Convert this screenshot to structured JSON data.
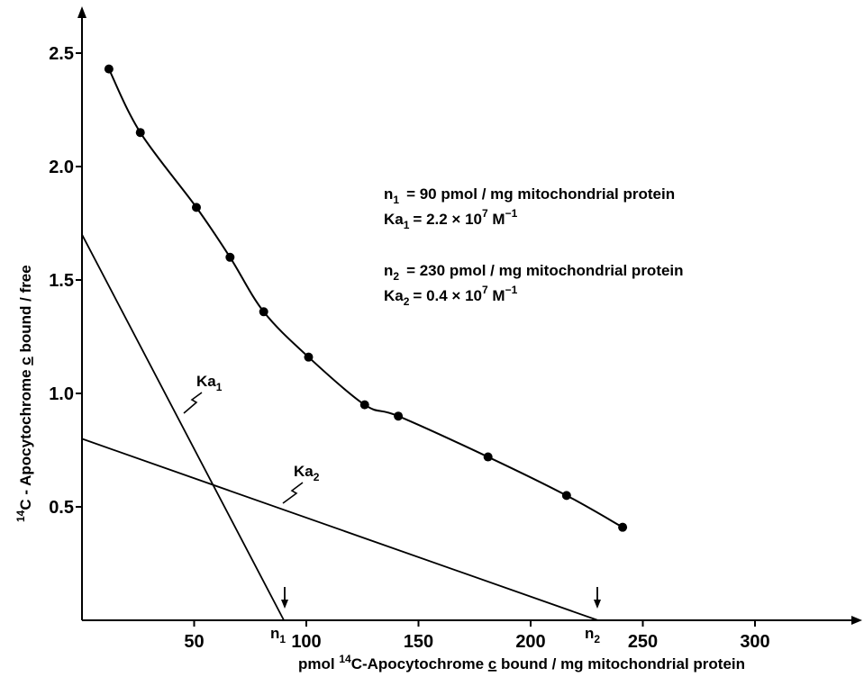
{
  "chart_data": {
    "type": "scatter",
    "xlabel": {
      "pre": "pmol ",
      "sup": "14",
      "post": "C-Apocytochrome ",
      "c": "c",
      "tail": " bound / mg  mitochondrial  protein"
    },
    "ylabel": {
      "sup": "14",
      "pre": "C - Apocytochrome ",
      "c": "c",
      "tail": " bound / free"
    },
    "xlim": [
      0,
      350
    ],
    "ylim": [
      0,
      2.75
    ],
    "x_ticks": [
      50,
      100,
      150,
      200,
      250,
      300
    ],
    "x_tick_labels": [
      "50",
      "100",
      "150",
      "200",
      "250",
      "300"
    ],
    "y_ticks": [
      0.5,
      1.0,
      1.5,
      2.0,
      2.5
    ],
    "y_tick_labels": [
      "0.5",
      "1.0",
      "1.5",
      "2.0",
      "2.5"
    ],
    "points": [
      {
        "x": 12,
        "y": 2.43
      },
      {
        "x": 26,
        "y": 2.15
      },
      {
        "x": 51,
        "y": 1.82
      },
      {
        "x": 66,
        "y": 1.6
      },
      {
        "x": 81,
        "y": 1.36
      },
      {
        "x": 101,
        "y": 1.16
      },
      {
        "x": 126,
        "y": 0.95
      },
      {
        "x": 141,
        "y": 0.9
      },
      {
        "x": 181,
        "y": 0.72
      },
      {
        "x": 216,
        "y": 0.55
      },
      {
        "x": 241,
        "y": 0.41
      }
    ],
    "lines": [
      {
        "label_base": "Ka",
        "label_sub": "1",
        "x_intercept": 90,
        "y_intercept": 1.7,
        "intercept_base": "n",
        "intercept_sub": "1"
      },
      {
        "label_base": "Ka",
        "label_sub": "2",
        "x_intercept": 230,
        "y_intercept": 0.8,
        "intercept_base": "n",
        "intercept_sub": "2"
      }
    ],
    "annotations": {
      "n1": {
        "base": "n",
        "sub": "1",
        "text": "= 90 pmol / mg  mitochondrial  protein"
      },
      "ka1": {
        "base": "Ka",
        "sub": "1",
        "pre": "=  2.2 × 10",
        "sup": "7",
        "unit": " M",
        "unit_sup": "−1"
      },
      "n2": {
        "base": "n",
        "sub": "2",
        "text": "= 230 pmol / mg  mitochondrial  protein"
      },
      "ka2": {
        "base": "Ka",
        "sub": "2",
        "pre": "=  0.4 × 10",
        "sup": "7",
        "unit": " M",
        "unit_sup": "−1"
      }
    }
  }
}
